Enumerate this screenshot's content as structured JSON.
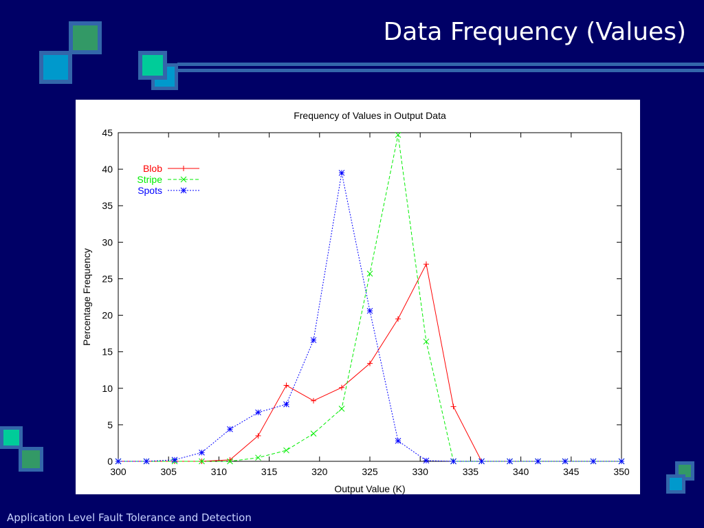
{
  "slide": {
    "title": "Data Frequency (Values)",
    "footer": "Application Level Fault Tolerance and Detection"
  },
  "colors": {
    "background": "#000066",
    "panel": "#ffffff",
    "accent_teal": "#00cc99",
    "accent_green": "#339966",
    "accent_blue": "#0099cc",
    "accent_border": "#3366aa",
    "blob": "#ff0000",
    "stripe": "#00ee00",
    "spots": "#0000ff"
  },
  "chart_data": {
    "type": "line",
    "title": "Frequency of Values in Output Data",
    "xlabel": "Output Value (K)",
    "ylabel": "Percentage Frequency",
    "xlim": [
      300,
      350
    ],
    "ylim": [
      0,
      45
    ],
    "xticks": [
      "300",
      "305",
      "310",
      "315",
      "320",
      "325",
      "330",
      "335",
      "340",
      "345",
      "350"
    ],
    "yticks": [
      "0",
      "5",
      "10",
      "15",
      "20",
      "25",
      "30",
      "35",
      "40",
      "45"
    ],
    "grid": false,
    "legend_position": "top-left",
    "x": [
      300,
      302.8,
      305.6,
      308.3,
      311.1,
      313.9,
      316.7,
      319.4,
      322.2,
      325.0,
      327.8,
      330.6,
      333.3,
      336.1,
      338.9,
      341.7,
      344.4,
      347.2,
      350.0
    ],
    "series": [
      {
        "name": "Blob",
        "color": "#ff0000",
        "marker": "plus",
        "dash": "solid",
        "values": [
          0,
          0,
          0,
          0,
          0.2,
          3.5,
          10.4,
          8.3,
          10.1,
          13.4,
          19.5,
          27.0,
          7.5,
          0,
          0,
          0,
          0,
          0,
          0
        ]
      },
      {
        "name": "Stripe",
        "color": "#00ee00",
        "marker": "cross",
        "dash": "dashed",
        "values": [
          0,
          0,
          0,
          0,
          0,
          0.5,
          1.5,
          3.8,
          7.2,
          25.7,
          44.7,
          16.4,
          0,
          0,
          0,
          0,
          0,
          0,
          0
        ]
      },
      {
        "name": "Spots",
        "color": "#0000ff",
        "marker": "star",
        "dash": "dotted",
        "values": [
          0,
          0,
          0.2,
          1.2,
          4.4,
          6.7,
          7.8,
          16.6,
          39.5,
          20.6,
          2.8,
          0.1,
          0,
          0,
          0,
          0,
          0,
          0,
          0
        ]
      }
    ]
  }
}
